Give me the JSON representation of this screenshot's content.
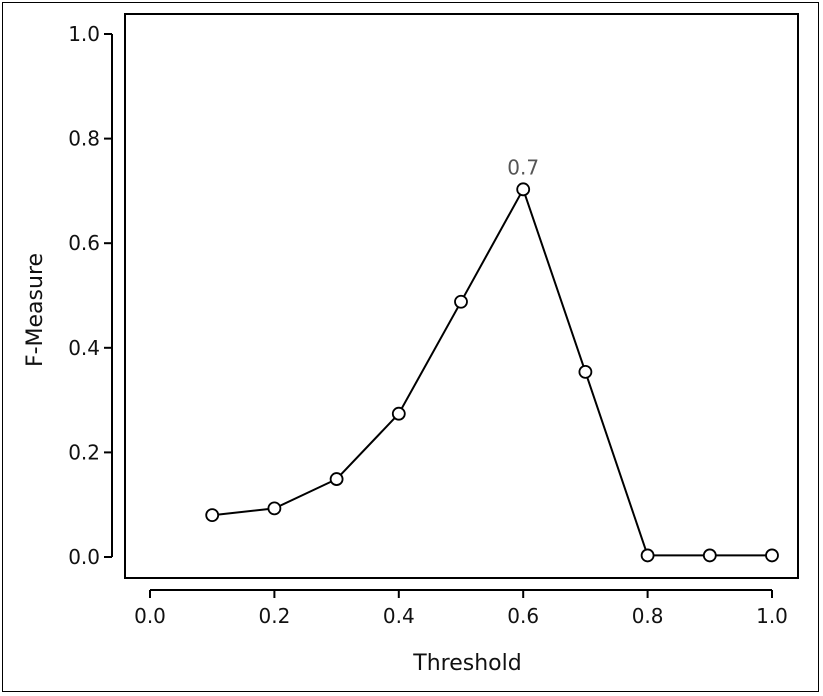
{
  "chart_data": {
    "type": "line",
    "xlabel": "Threshold",
    "ylabel": "F-Measure",
    "xlim": [
      0.0,
      1.0
    ],
    "ylim": [
      0.0,
      1.0
    ],
    "x_ticks": [
      "0.0",
      "0.2",
      "0.4",
      "0.6",
      "0.8",
      "1.0"
    ],
    "y_ticks": [
      "0.0",
      "0.2",
      "0.4",
      "0.6",
      "0.8",
      "1.0"
    ],
    "grid": false,
    "series": [
      {
        "x": [
          0.1,
          0.2,
          0.3,
          0.4,
          0.5,
          0.6,
          0.7,
          0.8,
          0.9,
          1.0
        ],
        "y": [
          0.08,
          0.093,
          0.149,
          0.274,
          0.488,
          0.703,
          0.354,
          0.003,
          0.003,
          0.003
        ]
      }
    ],
    "annotations": [
      {
        "text": "0.7",
        "x": 0.6,
        "y": 0.703
      }
    ],
    "colors": {
      "line": "#000000",
      "marker_fill": "#ffffff",
      "annotation": "#555555"
    }
  }
}
